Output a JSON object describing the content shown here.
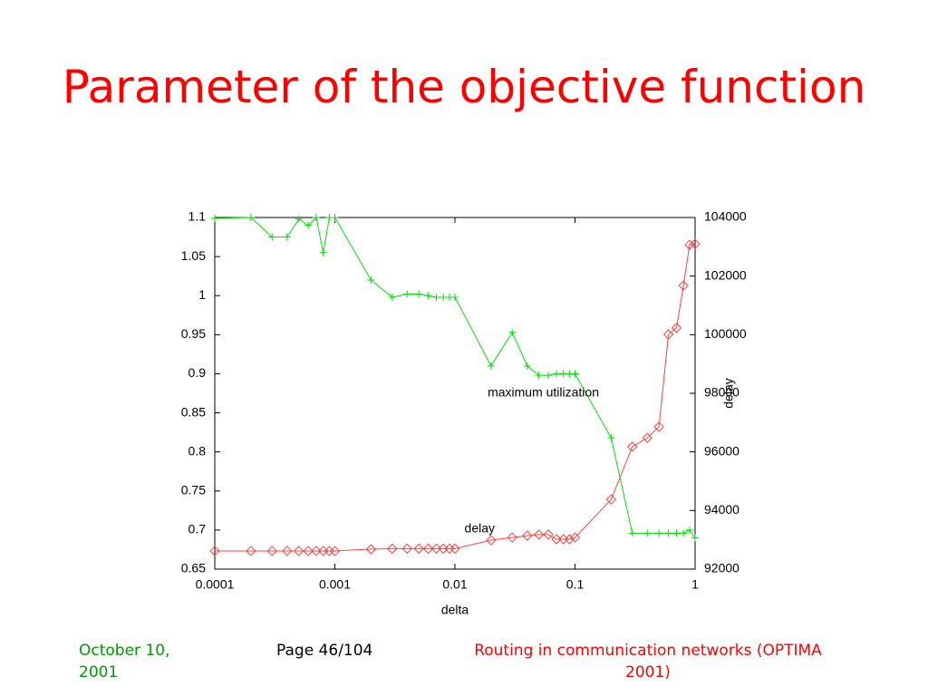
{
  "chart_data": {
    "type": "line",
    "title": "Parameter of the objective function",
    "xlabel": "delta",
    "y2label": "delay",
    "xscale": "log",
    "x": [
      0.0001,
      0.0002,
      0.0003,
      0.0004,
      0.0005,
      0.0006,
      0.0007,
      0.0008,
      0.0009,
      0.001,
      0.002,
      0.003,
      0.004,
      0.005,
      0.006,
      0.007,
      0.008,
      0.009,
      0.01,
      0.02,
      0.03,
      0.04,
      0.05,
      0.06,
      0.07,
      0.08,
      0.09,
      0.1,
      0.2,
      0.3,
      0.4,
      0.5,
      0.6,
      0.7,
      0.8,
      0.9,
      1
    ],
    "series": [
      {
        "name": "maximum utilization",
        "color": "#00e000",
        "axis": "y",
        "values": [
          1.099,
          1.1,
          1.075,
          1.075,
          1.098,
          1.09,
          1.1,
          1.055,
          1.1,
          1.1,
          1.02,
          0.998,
          1.002,
          1.002,
          1.0,
          0.998,
          0.998,
          0.998,
          0.998,
          0.91,
          0.953,
          0.91,
          0.898,
          0.898,
          0.9,
          0.9,
          0.9,
          0.9,
          0.818,
          0.696,
          0.696,
          0.696,
          0.696,
          0.696,
          0.696,
          0.7,
          0.69
        ]
      },
      {
        "name": "delay",
        "color": "#ff4040",
        "axis": "y2",
        "values": [
          92620,
          92620,
          92620,
          92620,
          92620,
          92620,
          92620,
          92620,
          92620,
          92620,
          92680,
          92700,
          92700,
          92700,
          92700,
          92700,
          92700,
          92700,
          92700,
          92990,
          93080,
          93140,
          93180,
          93180,
          93020,
          93020,
          93020,
          93080,
          94380,
          96180,
          96480,
          96860,
          100010,
          100230,
          101680,
          103070,
          103100
        ]
      }
    ],
    "xlim": [
      0.0001,
      1
    ],
    "xticks": [
      0.0001,
      0.001,
      0.01,
      0.1,
      1
    ],
    "ylim": [
      0.65,
      1.1
    ],
    "yticks": [
      0.65,
      0.7,
      0.75,
      0.8,
      0.85,
      0.9,
      0.95,
      1,
      1.05,
      1.1
    ],
    "y2lim": [
      92000,
      104000
    ],
    "y2ticks": [
      92000,
      94000,
      96000,
      98000,
      100000,
      102000,
      104000
    ],
    "grid": false
  },
  "footer": {
    "date": "October 10, 2001",
    "page": "Page 46/104",
    "event": "Routing in communication networks (OPTIMA 2001)"
  }
}
